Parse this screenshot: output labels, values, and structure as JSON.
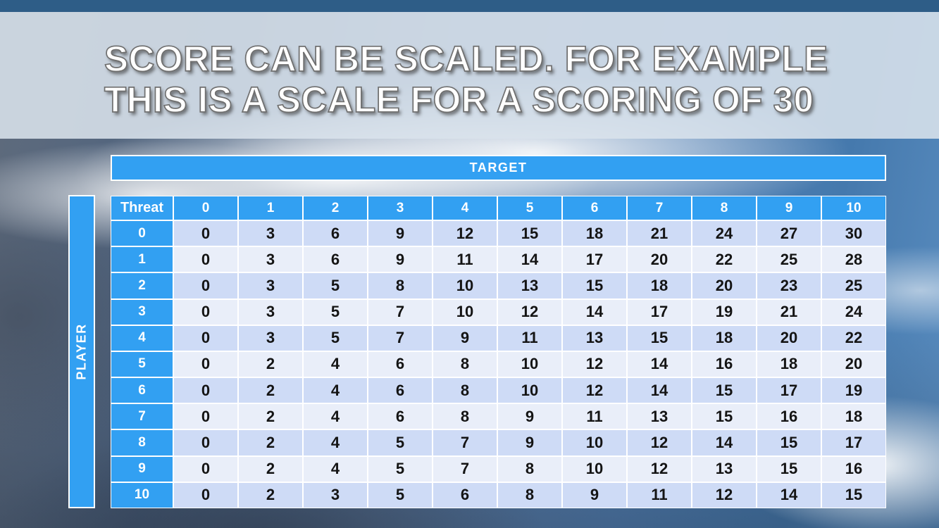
{
  "slide": {
    "title_line1": "SCORE CAN BE SCALED. FOR EXAMPLE",
    "title_line2": "THIS IS A SCALE FOR A SCORING OF 30"
  },
  "table": {
    "target_label": "TARGET",
    "player_label": "PLAYER",
    "corner_label": "Threat",
    "column_headers": [
      "0",
      "1",
      "2",
      "3",
      "4",
      "5",
      "6",
      "7",
      "8",
      "9",
      "10"
    ],
    "row_headers": [
      "0",
      "1",
      "2",
      "3",
      "4",
      "5",
      "6",
      "7",
      "8",
      "9",
      "10"
    ],
    "rows": [
      [
        0,
        3,
        6,
        9,
        12,
        15,
        18,
        21,
        24,
        27,
        30
      ],
      [
        0,
        3,
        6,
        9,
        11,
        14,
        17,
        20,
        22,
        25,
        28
      ],
      [
        0,
        3,
        5,
        8,
        10,
        13,
        15,
        18,
        20,
        23,
        25
      ],
      [
        0,
        3,
        5,
        7,
        10,
        12,
        14,
        17,
        19,
        21,
        24
      ],
      [
        0,
        3,
        5,
        7,
        9,
        11,
        13,
        15,
        18,
        20,
        22
      ],
      [
        0,
        2,
        4,
        6,
        8,
        10,
        12,
        14,
        16,
        18,
        20
      ],
      [
        0,
        2,
        4,
        6,
        8,
        10,
        12,
        14,
        15,
        17,
        19
      ],
      [
        0,
        2,
        4,
        6,
        8,
        9,
        11,
        13,
        15,
        16,
        18
      ],
      [
        0,
        2,
        4,
        5,
        7,
        9,
        10,
        12,
        14,
        15,
        17
      ],
      [
        0,
        2,
        4,
        5,
        7,
        8,
        10,
        12,
        13,
        15,
        16
      ],
      [
        0,
        2,
        3,
        5,
        6,
        8,
        9,
        11,
        12,
        14,
        15
      ]
    ]
  },
  "colors": {
    "accent_blue": "#32a0f2",
    "top_bar": "#2e5d87",
    "title_band": "rgba(218,227,236,0.88)",
    "row_even": "#cedbf6",
    "row_odd": "#e9eef9",
    "header_text": "#ffffff",
    "body_text": "#141414"
  }
}
